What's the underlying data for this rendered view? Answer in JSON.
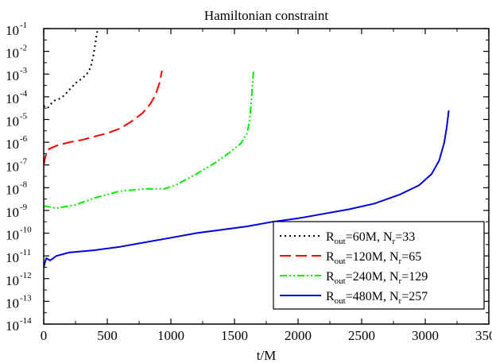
{
  "chart_data": {
    "type": "line",
    "title": "Hamiltonian constraint",
    "xlabel": "t/M",
    "ylabel": "",
    "xlim": [
      0,
      3500
    ],
    "ylim_log10": [
      -14,
      -1
    ],
    "yscale": "log",
    "grid": false,
    "legend_position": "bottom-right",
    "x_ticks": [
      "0",
      "500",
      "1000",
      "1500",
      "2000",
      "2500",
      "3000",
      "3500"
    ],
    "y_ticks": [
      {
        "base": "10",
        "exp": "-1"
      },
      {
        "base": "10",
        "exp": "-2"
      },
      {
        "base": "10",
        "exp": "-3"
      },
      {
        "base": "10",
        "exp": "-4"
      },
      {
        "base": "10",
        "exp": "-5"
      },
      {
        "base": "10",
        "exp": "-6"
      },
      {
        "base": "10",
        "exp": "-7"
      },
      {
        "base": "10",
        "exp": "-8"
      },
      {
        "base": "10",
        "exp": "-9"
      },
      {
        "base": "10",
        "exp": "-10"
      },
      {
        "base": "10",
        "exp": "-11"
      },
      {
        "base": "10",
        "exp": "-12"
      },
      {
        "base": "10",
        "exp": "-13"
      },
      {
        "base": "10",
        "exp": "-14"
      }
    ],
    "series": [
      {
        "label_parts": [
          "R",
          "out",
          "=60M, N",
          "r",
          "=33"
        ],
        "color": "#000000",
        "dash": "2,4",
        "points_log10": [
          [
            0,
            -4.4
          ],
          [
            30,
            -4.5
          ],
          [
            60,
            -4.3
          ],
          [
            90,
            -4.15
          ],
          [
            120,
            -4.1
          ],
          [
            160,
            -3.95
          ],
          [
            200,
            -3.7
          ],
          [
            250,
            -3.4
          ],
          [
            300,
            -3.2
          ],
          [
            340,
            -3.0
          ],
          [
            370,
            -2.7
          ],
          [
            390,
            -2.2
          ],
          [
            405,
            -1.7
          ],
          [
            415,
            -1.3
          ],
          [
            425,
            -1.0
          ]
        ]
      },
      {
        "label_parts": [
          "R",
          "out",
          "=120M, N",
          "r",
          "=65"
        ],
        "color": "#ff0000",
        "dash": "14,6",
        "points_log10": [
          [
            0,
            -7.0
          ],
          [
            15,
            -6.6
          ],
          [
            40,
            -6.3
          ],
          [
            100,
            -6.15
          ],
          [
            200,
            -6.0
          ],
          [
            300,
            -5.9
          ],
          [
            400,
            -5.75
          ],
          [
            500,
            -5.6
          ],
          [
            600,
            -5.4
          ],
          [
            700,
            -5.05
          ],
          [
            780,
            -4.7
          ],
          [
            840,
            -4.3
          ],
          [
            880,
            -3.9
          ],
          [
            910,
            -3.4
          ],
          [
            930,
            -2.85
          ]
        ]
      },
      {
        "label_parts": [
          "R",
          "out",
          "=240M, N",
          "r",
          "=129"
        ],
        "color": "#00ee00",
        "dash": "9,3,2,3,2,3",
        "points_log10": [
          [
            0,
            -8.8
          ],
          [
            100,
            -8.9
          ],
          [
            250,
            -8.75
          ],
          [
            400,
            -8.45
          ],
          [
            600,
            -8.15
          ],
          [
            800,
            -8.05
          ],
          [
            950,
            -8.05
          ],
          [
            1050,
            -7.85
          ],
          [
            1200,
            -7.4
          ],
          [
            1350,
            -6.9
          ],
          [
            1450,
            -6.5
          ],
          [
            1550,
            -6.05
          ],
          [
            1600,
            -5.6
          ],
          [
            1620,
            -5.0
          ],
          [
            1635,
            -4.0
          ],
          [
            1645,
            -3.2
          ],
          [
            1650,
            -2.8
          ]
        ]
      },
      {
        "label_parts": [
          "R",
          "out",
          "=480M, N",
          "r",
          "=257"
        ],
        "color": "#0000dd",
        "dash": "",
        "points_log10": [
          [
            0,
            -11.5
          ],
          [
            20,
            -11.1
          ],
          [
            50,
            -11.2
          ],
          [
            100,
            -11.0
          ],
          [
            200,
            -10.85
          ],
          [
            400,
            -10.75
          ],
          [
            600,
            -10.6
          ],
          [
            800,
            -10.4
          ],
          [
            1000,
            -10.2
          ],
          [
            1200,
            -10.0
          ],
          [
            1400,
            -9.85
          ],
          [
            1600,
            -9.7
          ],
          [
            1800,
            -9.5
          ],
          [
            2000,
            -9.35
          ],
          [
            2200,
            -9.15
          ],
          [
            2400,
            -8.95
          ],
          [
            2600,
            -8.7
          ],
          [
            2800,
            -8.3
          ],
          [
            2950,
            -7.9
          ],
          [
            3050,
            -7.4
          ],
          [
            3110,
            -6.8
          ],
          [
            3150,
            -6.0
          ],
          [
            3170,
            -5.3
          ],
          [
            3185,
            -4.6
          ]
        ]
      }
    ]
  }
}
